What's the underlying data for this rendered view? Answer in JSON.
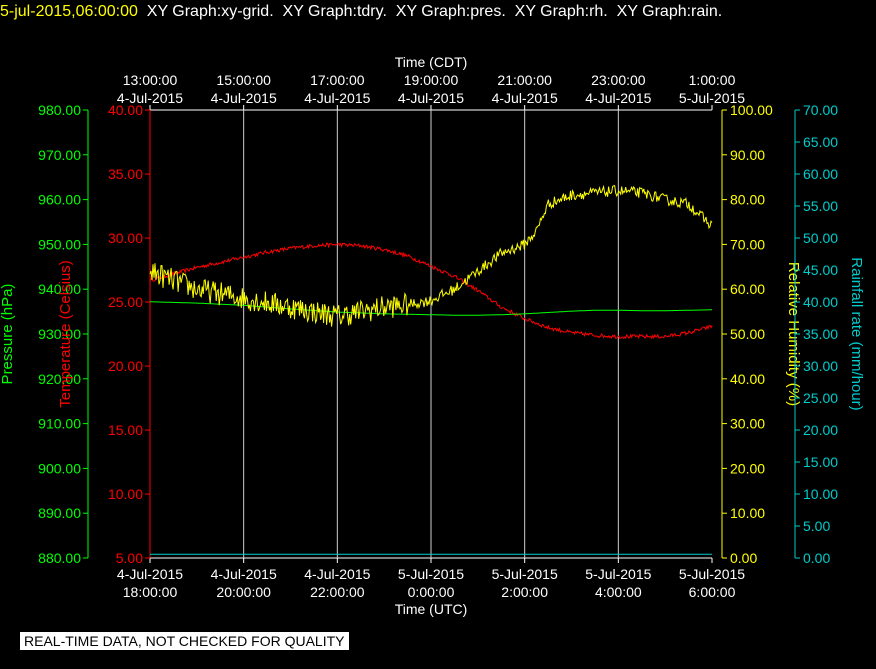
{
  "header": {
    "timestamp": "5-jul-2015,06:00:00",
    "graphs": [
      "XY Graph:xy-grid.",
      "XY Graph:tdry.",
      "XY Graph:pres.",
      "XY Graph:rh.",
      "XY Graph:rain."
    ]
  },
  "footer": {
    "note": "REAL-TIME DATA, NOT CHECKED FOR QUALITY"
  },
  "colors": {
    "background": "#000000",
    "grid": "#ffffff",
    "temperature": "#ff0000",
    "pressure": "#00ff00",
    "humidity": "#ffff00",
    "rain": "#00cccc"
  },
  "chart_data": {
    "type": "line",
    "x_range_hours_utc": [
      0,
      12
    ],
    "x_axis_top": {
      "title": "Time (CDT)",
      "ticks": [
        {
          "time": "13:00:00",
          "date": "4-Jul-2015"
        },
        {
          "time": "15:00:00",
          "date": "4-Jul-2015"
        },
        {
          "time": "17:00:00",
          "date": "4-Jul-2015"
        },
        {
          "time": "19:00:00",
          "date": "4-Jul-2015"
        },
        {
          "time": "21:00:00",
          "date": "4-Jul-2015"
        },
        {
          "time": "23:00:00",
          "date": "4-Jul-2015"
        },
        {
          "time": "1:00:00",
          "date": "5-Jul-2015"
        }
      ]
    },
    "x_axis_bottom": {
      "title": "Time (UTC)",
      "ticks": [
        {
          "date": "4-Jul-2015",
          "time": "18:00:00"
        },
        {
          "date": "4-Jul-2015",
          "time": "20:00:00"
        },
        {
          "date": "4-Jul-2015",
          "time": "22:00:00"
        },
        {
          "date": "5-Jul-2015",
          "time": "0:00:00"
        },
        {
          "date": "5-Jul-2015",
          "time": "2:00:00"
        },
        {
          "date": "5-Jul-2015",
          "time": "4:00:00"
        },
        {
          "date": "5-Jul-2015",
          "time": "6:00:00"
        }
      ]
    },
    "axes": {
      "pressure": {
        "label": "Pressure (hPa)",
        "range": [
          880,
          980
        ],
        "ticks": [
          "880.00",
          "890.00",
          "900.00",
          "910.00",
          "920.00",
          "930.00",
          "940.00",
          "950.00",
          "960.00",
          "970.00",
          "980.00"
        ]
      },
      "temperature": {
        "label": "Temperature (Celsius)",
        "range": [
          5,
          40
        ],
        "ticks": [
          "5.00",
          "10.00",
          "15.00",
          "20.00",
          "25.00",
          "30.00",
          "35.00",
          "40.00"
        ]
      },
      "humidity": {
        "label": "Relative Humidity (%)",
        "range": [
          0,
          100
        ],
        "ticks": [
          "0.00",
          "10.00",
          "20.00",
          "30.00",
          "40.00",
          "50.00",
          "60.00",
          "70.00",
          "80.00",
          "90.00",
          "100.00"
        ]
      },
      "rain": {
        "label": "Rainfall rate (mm/hour)",
        "range": [
          0,
          70
        ],
        "ticks": [
          "0.00",
          "5.00",
          "10.00",
          "15.00",
          "20.00",
          "25.00",
          "30.00",
          "35.00",
          "40.00",
          "45.00",
          "50.00",
          "55.00",
          "60.00",
          "65.00",
          "70.00"
        ]
      }
    },
    "grid": true,
    "series": [
      {
        "name": "tdry",
        "axis": "temperature",
        "x": [
          0,
          0.5,
          1,
          1.5,
          2,
          2.5,
          3,
          3.5,
          4,
          4.5,
          5,
          5.5,
          6,
          6.5,
          7,
          7.5,
          8,
          8.5,
          9,
          9.5,
          10,
          10.5,
          11,
          11.5,
          12
        ],
        "y": [
          26.7,
          27.2,
          27.7,
          28.1,
          28.5,
          28.9,
          29.2,
          29.4,
          29.5,
          29.4,
          29.1,
          28.6,
          27.8,
          27.0,
          25.9,
          24.6,
          23.7,
          23.0,
          22.6,
          22.4,
          22.3,
          22.3,
          22.3,
          22.6,
          23.1
        ],
        "noise": 0.15
      },
      {
        "name": "pres",
        "axis": "pressure",
        "x": [
          0,
          1,
          2,
          3,
          4,
          5,
          6,
          6.5,
          7,
          7.5,
          8,
          8.5,
          9,
          9.5,
          10,
          10.5,
          11,
          11.5,
          12
        ],
        "y": [
          937.2,
          936.9,
          936.4,
          935.6,
          934.9,
          934.5,
          934.3,
          934.2,
          934.2,
          934.3,
          934.5,
          934.8,
          935.1,
          935.3,
          935.3,
          935.2,
          935.2,
          935.3,
          935.4
        ],
        "noise": 0.0
      },
      {
        "name": "rh",
        "axis": "humidity",
        "x": [
          0,
          0.5,
          1,
          1.5,
          2,
          2.5,
          3,
          3.5,
          4,
          4.5,
          5,
          5.5,
          6,
          6.5,
          7,
          7.5,
          8,
          8.25,
          8.5,
          9,
          9.5,
          10,
          10.5,
          11,
          11.5,
          12
        ],
        "y": [
          64,
          62,
          60,
          59,
          58,
          57,
          56,
          55,
          54,
          55,
          56,
          56.5,
          57.5,
          60,
          64,
          68,
          70,
          73,
          79,
          81,
          81.5,
          82,
          81.5,
          80,
          79,
          74
        ],
        "noise": 1.2
      },
      {
        "name": "rain",
        "axis": "rain",
        "x": [
          0,
          12
        ],
        "y": [
          0.6,
          0.6
        ],
        "noise": 0.0
      }
    ]
  }
}
